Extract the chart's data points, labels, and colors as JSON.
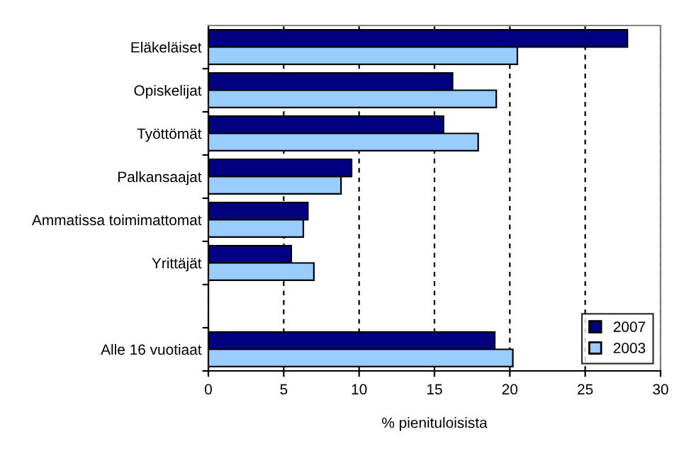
{
  "chart_data": {
    "type": "bar",
    "orientation": "horizontal",
    "xlabel": "% pienituloisista",
    "categories": [
      "Eläkeläiset",
      "Opiskelijat",
      "Työttömät",
      "Palkansaajat",
      "Ammatissa toimimattomat",
      "Yrittäjät",
      null,
      "Alle 16 vuotiaat"
    ],
    "series": [
      {
        "name": "2007",
        "color": "#000080",
        "values": [
          27.8,
          16.2,
          15.6,
          9.5,
          6.6,
          5.5,
          null,
          19.0
        ]
      },
      {
        "name": "2003",
        "color": "#99ccff",
        "values": [
          20.5,
          19.1,
          17.9,
          8.8,
          6.3,
          7.0,
          null,
          20.2
        ]
      }
    ],
    "xlim": [
      0,
      30
    ],
    "xticks": [
      0,
      5,
      10,
      15,
      20,
      25,
      30
    ],
    "grid": "x",
    "legend": "bottom right"
  }
}
